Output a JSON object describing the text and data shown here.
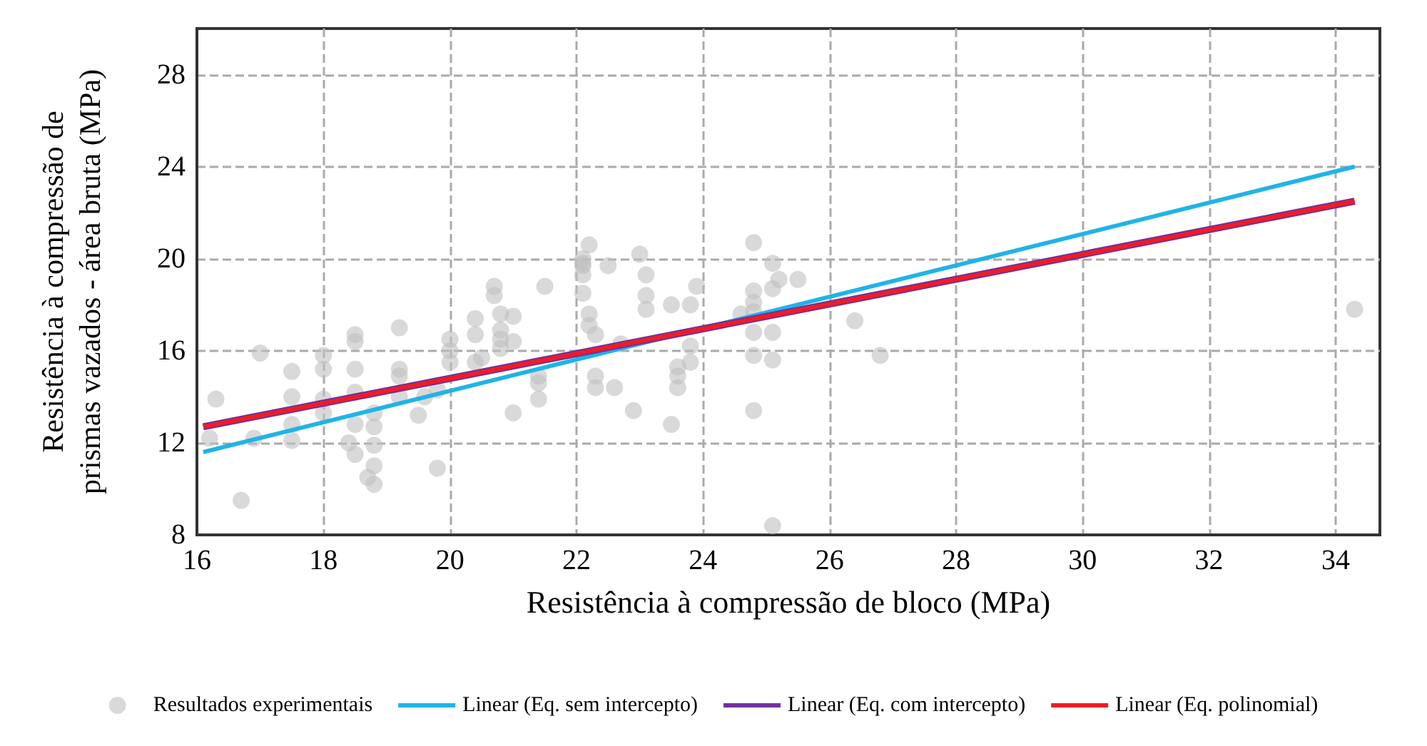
{
  "chart_data": {
    "type": "scatter",
    "xlabel": "Resistência à compressão de bloco (MPa)",
    "ylabel": "Resistência à compressão de\nprismas vazados - área bruta (MPa)",
    "xlim": [
      16,
      34.7
    ],
    "xticks": [
      16,
      18,
      20,
      22,
      24,
      26,
      28,
      30,
      32,
      34
    ],
    "ylim": [
      8,
      30
    ],
    "yticks": [
      8,
      12,
      16,
      20,
      24,
      28
    ],
    "grid": true,
    "legend": "bottom",
    "series": [
      {
        "name": "Resultados experimentais",
        "marker": "circle",
        "color": "#bfbfbf",
        "x": [
          16.2,
          16.3,
          16.7,
          16.9,
          17.0,
          17.5,
          17.5,
          17.5,
          17.5,
          18.0,
          18.0,
          18.0,
          18.0,
          18.4,
          18.5,
          18.5,
          18.5,
          18.5,
          18.5,
          18.5,
          18.7,
          18.8,
          18.8,
          18.8,
          18.8,
          18.8,
          19.2,
          19.2,
          19.2,
          19.2,
          19.5,
          19.6,
          19.8,
          19.8,
          20.0,
          20.0,
          20.0,
          20.4,
          20.4,
          20.4,
          20.5,
          20.7,
          20.7,
          20.8,
          20.8,
          20.8,
          20.8,
          21.0,
          21.0,
          21.0,
          21.4,
          21.4,
          21.4,
          21.5,
          22.2,
          22.1,
          22.1,
          22.1,
          22.2,
          22.2,
          22.3,
          22.3,
          22.3,
          22.1,
          22.1,
          22.5,
          22.6,
          22.7,
          22.9,
          23.0,
          23.1,
          23.1,
          23.1,
          23.5,
          23.5,
          23.6,
          23.6,
          23.6,
          23.8,
          23.8,
          23.8,
          23.9,
          24.8,
          25.1,
          25.2,
          25.1,
          25.5,
          24.8,
          24.8,
          24.8,
          24.6,
          24.8,
          25.1,
          24.8,
          25.1,
          24.8,
          25.1,
          26.4,
          26.8,
          34.3
        ],
        "values": [
          12.2,
          13.9,
          9.5,
          12.2,
          15.9,
          14.0,
          12.8,
          12.1,
          15.1,
          15.8,
          15.2,
          13.9,
          13.3,
          12.0,
          15.2,
          12.8,
          11.5,
          16.4,
          16.7,
          14.2,
          10.5,
          13.3,
          12.7,
          11.9,
          11.0,
          10.2,
          17.0,
          15.2,
          14.9,
          14.0,
          13.2,
          14.0,
          14.3,
          10.9,
          16.5,
          16.0,
          15.5,
          17.4,
          16.7,
          15.5,
          15.7,
          18.8,
          18.4,
          17.6,
          16.9,
          16.5,
          16.1,
          17.5,
          16.4,
          13.3,
          14.9,
          14.6,
          13.9,
          18.8,
          20.6,
          19.8,
          19.3,
          18.5,
          17.6,
          17.1,
          16.7,
          14.9,
          14.4,
          19.7,
          20.0,
          19.7,
          14.4,
          16.3,
          13.4,
          20.2,
          19.3,
          18.4,
          17.8,
          18.0,
          12.8,
          15.3,
          14.9,
          14.4,
          18.0,
          16.2,
          15.5,
          18.8,
          20.7,
          19.8,
          19.1,
          18.7,
          19.1,
          18.6,
          18.1,
          17.7,
          17.6,
          16.8,
          16.8,
          15.8,
          15.6,
          13.4,
          8.4,
          17.3,
          15.8,
          17.8
        ]
      },
      {
        "name": "Linear (Eq. sem intercepto)",
        "type": "line",
        "marker": "none",
        "line_style": "solid",
        "color": "#1fb4e8",
        "x": [
          16.1,
          34.3
        ],
        "values": [
          11.6,
          24.0
        ]
      },
      {
        "name": "Linear (Eq. com intercepto)",
        "type": "line",
        "marker": "none",
        "line_style": "solid",
        "color": "#7030a0",
        "x": [
          16.1,
          34.3
        ],
        "values": [
          12.7,
          22.5
        ]
      },
      {
        "name": "Linear (Eq. polinomial)",
        "type": "line",
        "marker": "none",
        "line_style": "solid",
        "color": "#ee1c25",
        "x": [
          16.1,
          34.3
        ],
        "values": [
          12.7,
          22.5
        ]
      }
    ]
  }
}
